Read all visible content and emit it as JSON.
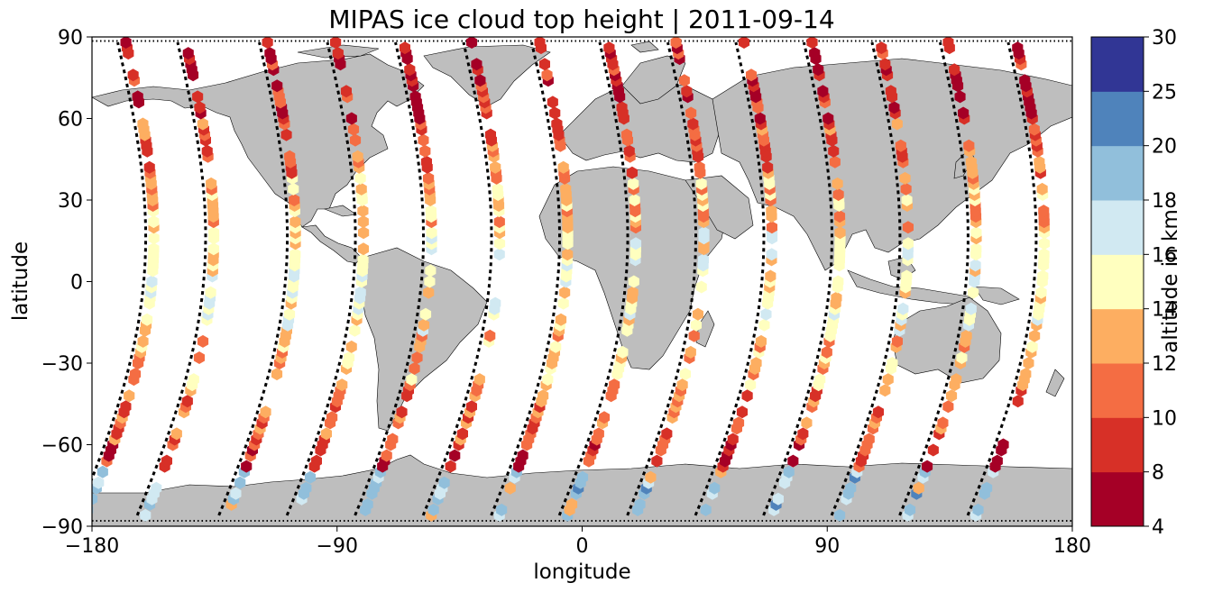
{
  "title": "MIPAS ice cloud top height | 2011-09-14",
  "map": {
    "xlabel": "longitude",
    "ylabel": "latitude",
    "x_ticks": [
      "−180",
      "−90",
      "0",
      "90",
      "180"
    ],
    "y_ticks": [
      "90",
      "60",
      "30",
      "0",
      "−30",
      "−60",
      "−90"
    ],
    "x_range": [
      -180,
      180
    ],
    "y_range": [
      -90,
      90
    ],
    "land_color": "#bebebe",
    "ocean_color": "#ffffff",
    "track_color": "#000000"
  },
  "colorbar": {
    "label": "altitude in km",
    "ticks": [
      "4",
      "8",
      "10",
      "12",
      "14",
      "16",
      "18",
      "20",
      "25",
      "30"
    ],
    "colors": [
      "#a50026",
      "#d73027",
      "#f46d43",
      "#fdae61",
      "#fee090",
      "#ffffbf",
      "#e0f3f8",
      "#abd9e9",
      "#74add1",
      "#4575b4",
      "#313695"
    ],
    "levels": [
      4,
      8,
      10,
      12,
      14,
      16,
      18,
      20,
      25,
      30
    ]
  },
  "chart_data": {
    "type": "scatter",
    "title": "MIPAS ice cloud top height | 2011-09-14",
    "xlabel": "longitude",
    "ylabel": "latitude",
    "xlim": [
      -180,
      180
    ],
    "ylim": [
      -90,
      90
    ],
    "colorbar_label": "altitude in km",
    "colorbar_levels": [
      4,
      8,
      10,
      12,
      14,
      16,
      18,
      20,
      25,
      30
    ],
    "tracks": [
      {
        "lon0": -180,
        "lon_span": 24,
        "ascending_lon": -170
      },
      {
        "lon0": -155,
        "lon_span": 24,
        "ascending_lon": -148
      },
      {
        "lon0": -130,
        "lon_span": 24,
        "ascending_lon": -118
      },
      {
        "lon0": -105,
        "lon_span": 24,
        "ascending_lon": -93
      },
      {
        "lon0": -80,
        "lon_span": 24,
        "ascending_lon": -68
      },
      {
        "lon0": -55,
        "lon_span": 24,
        "ascending_lon": -43
      },
      {
        "lon0": -30,
        "lon_span": 24,
        "ascending_lon": -18
      },
      {
        "lon0": -5,
        "lon_span": 24,
        "ascending_lon": 7
      },
      {
        "lon0": 20,
        "lon_span": 24,
        "ascending_lon": 32
      },
      {
        "lon0": 45,
        "lon_span": 24,
        "ascending_lon": 57
      },
      {
        "lon0": 70,
        "lon_span": 24,
        "ascending_lon": 82
      },
      {
        "lon0": 95,
        "lon_span": 24,
        "ascending_lon": 107
      },
      {
        "lon0": 120,
        "lon_span": 24,
        "ascending_lon": 132
      },
      {
        "lon0": 145,
        "lon_span": 24,
        "ascending_lon": 157
      }
    ],
    "notes": "Hexagonal markers colored by cloud top altitude (km) along MIPAS orbit tracks; high altitudes (18-25 km) mostly near Antarctica, low altitudes (4-10 km) at high latitudes, 14-18 km in tropics."
  }
}
